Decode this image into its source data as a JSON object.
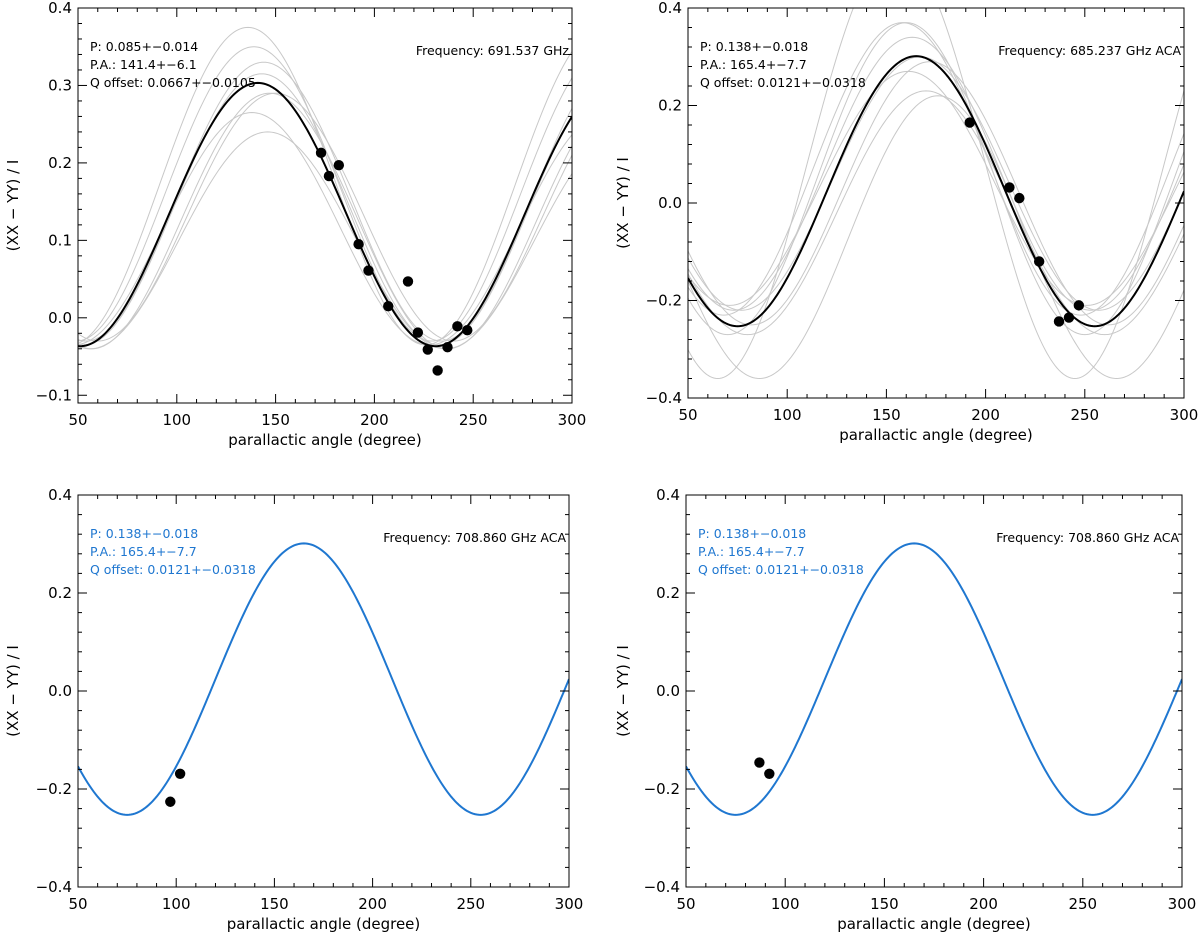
{
  "chart_data": [
    {
      "type": "line",
      "panel": "top-left",
      "xlabel": "parallactic angle (degree)",
      "ylabel": "(XX − YY) / I",
      "xlim": [
        50,
        300
      ],
      "ylim": [
        -0.11,
        0.4
      ],
      "xticks": [
        50,
        100,
        150,
        200,
        250,
        300
      ],
      "yticks": [
        -0.1,
        0.0,
        0.1,
        0.2,
        0.3,
        0.4
      ],
      "ytick_labels": [
        "−0.1",
        "0.0",
        "0.1",
        "0.2",
        "0.3",
        "0.4"
      ],
      "fit": {
        "amplitude": 0.17,
        "offset": 0.1333,
        "peak_angle": 141,
        "color": "#000000"
      },
      "spread_curves": [
        {
          "amplitude": 0.205,
          "offset": 0.17,
          "peak_angle": 136
        },
        {
          "amplitude": 0.19,
          "offset": 0.16,
          "peak_angle": 139
        },
        {
          "amplitude": 0.18,
          "offset": 0.15,
          "peak_angle": 144
        },
        {
          "amplitude": 0.165,
          "offset": 0.125,
          "peak_angle": 147
        },
        {
          "amplitude": 0.15,
          "offset": 0.115,
          "peak_angle": 138
        },
        {
          "amplitude": 0.14,
          "offset": 0.1,
          "peak_angle": 146
        },
        {
          "amplitude": 0.175,
          "offset": 0.14,
          "peak_angle": 143
        },
        {
          "amplitude": 0.16,
          "offset": 0.13,
          "peak_angle": 150
        }
      ],
      "points": [
        {
          "x": 173,
          "y": 0.213
        },
        {
          "x": 177,
          "y": 0.183
        },
        {
          "x": 182,
          "y": 0.197
        },
        {
          "x": 192,
          "y": 0.095
        },
        {
          "x": 197,
          "y": 0.061
        },
        {
          "x": 207,
          "y": 0.015
        },
        {
          "x": 217,
          "y": 0.047
        },
        {
          "x": 222,
          "y": -0.019
        },
        {
          "x": 227,
          "y": -0.041
        },
        {
          "x": 232,
          "y": -0.068
        },
        {
          "x": 237,
          "y": -0.038
        },
        {
          "x": 242,
          "y": -0.011
        },
        {
          "x": 247,
          "y": -0.016
        }
      ],
      "annotations": {
        "p": "P: 0.085+−0.014",
        "pa": "P.A.: 141.4+−6.1",
        "q": "Q offset: 0.0667+−0.0105",
        "color": "#000000"
      },
      "frequency": "Frequency: 691.537 GHz"
    },
    {
      "type": "line",
      "panel": "top-right",
      "xlabel": "parallactic angle (degree)",
      "ylabel": "(XX − YY) / I",
      "xlim": [
        50,
        300
      ],
      "ylim": [
        -0.4,
        0.4
      ],
      "xticks": [
        50,
        100,
        150,
        200,
        250,
        300
      ],
      "yticks": [
        -0.4,
        -0.2,
        0.0,
        0.2,
        0.4
      ],
      "ytick_labels": [
        "−0.4",
        "−0.2",
        "0.0",
        "0.2",
        "0.4"
      ],
      "fit": {
        "amplitude": 0.277,
        "offset": 0.0242,
        "peak_angle": 165,
        "color": "#000000"
      },
      "spread_curves": [
        {
          "amplitude": 0.44,
          "offset": 0.08,
          "peak_angle": 155
        },
        {
          "amplitude": 0.32,
          "offset": 0.05,
          "peak_angle": 160
        },
        {
          "amplitude": 0.3,
          "offset": 0.07,
          "peak_angle": 158
        },
        {
          "amplitude": 0.28,
          "offset": 0.06,
          "peak_angle": 163
        },
        {
          "amplitude": 0.26,
          "offset": 0.04,
          "peak_angle": 167
        },
        {
          "amplitude": 0.24,
          "offset": 0.03,
          "peak_angle": 161
        },
        {
          "amplitude": 0.25,
          "offset": -0.02,
          "peak_angle": 170
        },
        {
          "amplitude": 0.29,
          "offset": -0.07,
          "peak_angle": 176
        },
        {
          "amplitude": 0.27,
          "offset": 0.02,
          "peak_angle": 172
        }
      ],
      "points": [
        {
          "x": 192,
          "y": 0.165
        },
        {
          "x": 212,
          "y": 0.032
        },
        {
          "x": 217,
          "y": 0.01
        },
        {
          "x": 227,
          "y": -0.12
        },
        {
          "x": 237,
          "y": -0.243
        },
        {
          "x": 242,
          "y": -0.235
        },
        {
          "x": 247,
          "y": -0.21
        }
      ],
      "annotations": {
        "p": "P: 0.138+−0.018",
        "pa": "P.A.: 165.4+−7.7",
        "q": "Q offset: 0.0121+−0.0318",
        "color": "#000000"
      },
      "frequency": "Frequency: 685.237 GHz ACA"
    },
    {
      "type": "line",
      "panel": "bottom-left",
      "xlabel": "parallactic angle (degree)",
      "ylabel": "(XX − YY) / I",
      "xlim": [
        50,
        300
      ],
      "ylim": [
        -0.4,
        0.4
      ],
      "xticks": [
        50,
        100,
        150,
        200,
        250,
        300
      ],
      "yticks": [
        -0.4,
        -0.2,
        0.0,
        0.2,
        0.4
      ],
      "ytick_labels": [
        "−0.4",
        "−0.2",
        "0.0",
        "0.2",
        "0.4"
      ],
      "fit": {
        "amplitude": 0.277,
        "offset": 0.0242,
        "peak_angle": 165,
        "color": "#1f77d0"
      },
      "spread_curves": [],
      "points": [
        {
          "x": 97,
          "y": -0.226
        },
        {
          "x": 102,
          "y": -0.169
        }
      ],
      "annotations": {
        "p": "P: 0.138+−0.018",
        "pa": "P.A.: 165.4+−7.7",
        "q": "Q offset: 0.0121+−0.0318",
        "color": "#1f77d0"
      },
      "frequency": "Frequency: 708.860 GHz ACA"
    },
    {
      "type": "line",
      "panel": "bottom-right",
      "xlabel": "parallactic angle (degree)",
      "ylabel": "(XX − YY) / I",
      "xlim": [
        50,
        300
      ],
      "ylim": [
        -0.4,
        0.4
      ],
      "xticks": [
        50,
        100,
        150,
        200,
        250,
        300
      ],
      "yticks": [
        -0.4,
        -0.2,
        0.0,
        0.2,
        0.4
      ],
      "ytick_labels": [
        "−0.4",
        "−0.2",
        "0.0",
        "0.2",
        "0.4"
      ],
      "fit": {
        "amplitude": 0.277,
        "offset": 0.0242,
        "peak_angle": 165,
        "color": "#1f77d0"
      },
      "spread_curves": [],
      "points": [
        {
          "x": 87,
          "y": -0.146
        },
        {
          "x": 92,
          "y": -0.169
        }
      ],
      "annotations": {
        "p": "P: 0.138+−0.018",
        "pa": "P.A.: 165.4+−7.7",
        "q": "Q offset: 0.0121+−0.0318",
        "color": "#1f77d0"
      },
      "frequency": "Frequency: 708.860 GHz ACA"
    }
  ]
}
